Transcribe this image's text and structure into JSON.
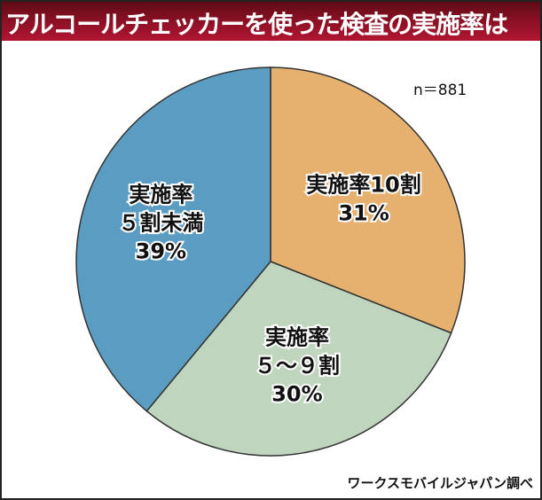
{
  "title": "アルコールチェッカーを使った検査の実施率は",
  "sample_size": "n＝881",
  "source": "ワークスモバイルジャパン調べ",
  "chart_data": {
    "type": "pie",
    "title": "アルコールチェッカーを使った検査の実施率は",
    "start": "12 o'clock, clockwise",
    "slices": [
      {
        "label_lines": [
          "実施率10割",
          "31%"
        ],
        "label": "実施率10割",
        "value": 31,
        "color": "#e6b06e"
      },
      {
        "label_lines": [
          "実施率",
          "５～９割",
          "30%"
        ],
        "label": "実施率５～９割",
        "value": 30,
        "color": "#bfd5bd"
      },
      {
        "label_lines": [
          "実施率",
          "５割未満",
          "39%"
        ],
        "label": "実施率５割未満",
        "value": 39,
        "color": "#5b9dc2"
      }
    ]
  }
}
